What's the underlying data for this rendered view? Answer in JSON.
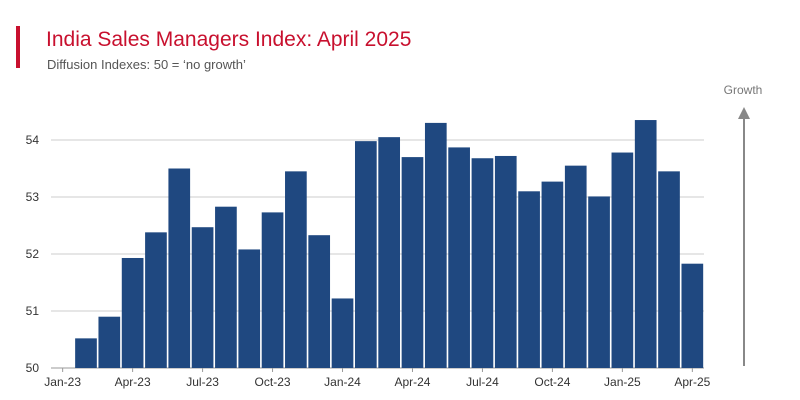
{
  "header": {
    "title": "India Sales Managers Index: April 2025",
    "subtitle": "Diffusion Indexes: 50 = ‘no growth’"
  },
  "colors": {
    "bar": "#1f4880",
    "accent": "#c8102e",
    "grid": "#cccccc",
    "arrow": "#888888"
  },
  "chart_data": {
    "type": "bar",
    "title": "India Sales Managers Index: April 2025",
    "subtitle": "Diffusion Indexes: 50 = ‘no growth’",
    "xlabel": "",
    "ylabel": "",
    "ylim": [
      50,
      54.5
    ],
    "yticks": [
      50,
      51,
      52,
      53,
      54
    ],
    "grid": true,
    "annotation": "Growth",
    "categories": [
      "Jan-23",
      "Feb-23",
      "Mar-23",
      "Apr-23",
      "May-23",
      "Jun-23",
      "Jul-23",
      "Aug-23",
      "Sep-23",
      "Oct-23",
      "Nov-23",
      "Dec-23",
      "Jan-24",
      "Feb-24",
      "Mar-24",
      "Apr-24",
      "May-24",
      "Jun-24",
      "Jul-24",
      "Aug-24",
      "Sep-24",
      "Oct-24",
      "Nov-24",
      "Dec-24",
      "Jan-25",
      "Feb-25",
      "Mar-25",
      "Apr-25"
    ],
    "xtick_labels": [
      "Jan-23",
      "Apr-23",
      "Jul-23",
      "Oct-23",
      "Jan-24",
      "Apr-24",
      "Jul-24",
      "Oct-24",
      "Jan-25",
      "Apr-25"
    ],
    "xtick_index": [
      0,
      3,
      6,
      9,
      12,
      15,
      18,
      21,
      24,
      27
    ],
    "values": [
      50.0,
      50.52,
      50.9,
      51.93,
      52.38,
      53.5,
      52.47,
      52.83,
      52.08,
      52.73,
      53.45,
      52.33,
      51.22,
      53.98,
      54.05,
      53.7,
      54.3,
      53.87,
      53.68,
      53.72,
      53.1,
      53.27,
      53.55,
      53.01,
      53.78,
      54.35,
      53.45,
      51.83
    ]
  }
}
